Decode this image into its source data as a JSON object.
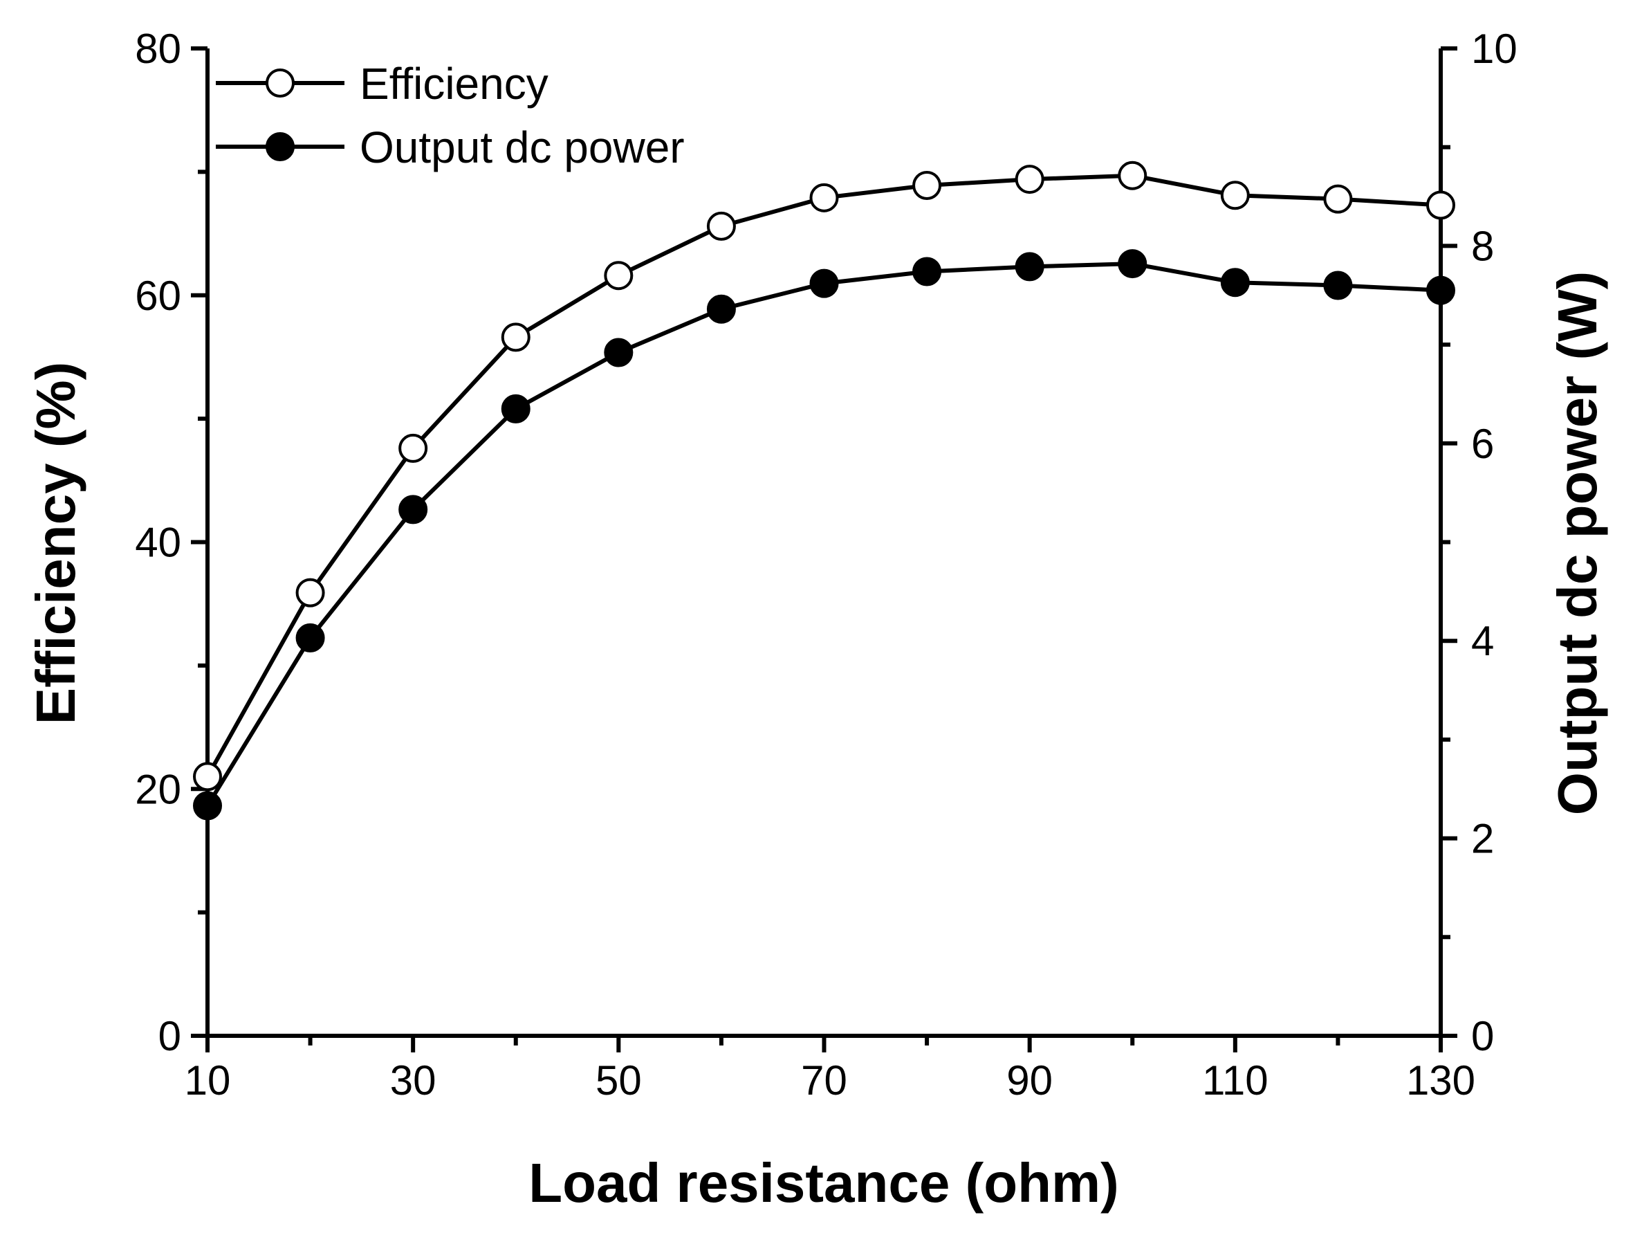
{
  "chart_data": {
    "type": "line",
    "x": [
      10,
      20,
      30,
      40,
      50,
      60,
      70,
      80,
      90,
      100,
      110,
      120,
      130
    ],
    "xlabel": "Load resistance (ohm)",
    "ylabel": "Efficiency (%)",
    "y2label": "Output dc power (W)",
    "xlim": [
      10,
      130
    ],
    "ylim": [
      0,
      80
    ],
    "y2lim": [
      0,
      10
    ],
    "xticks": [
      "10",
      "30",
      "50",
      "70",
      "90",
      "110",
      "130"
    ],
    "yticks": [
      "0",
      "20",
      "40",
      "60",
      "80"
    ],
    "y2ticks": [
      "0",
      "2",
      "4",
      "6",
      "8",
      "10"
    ],
    "legend_position": "top-left",
    "grid": false,
    "series": [
      {
        "name": "Efficiency",
        "axis": "left",
        "marker": "open-circle",
        "values": [
          21.0,
          35.9,
          47.6,
          56.6,
          61.6,
          65.6,
          67.9,
          68.9,
          69.4,
          69.7,
          68.1,
          67.8,
          67.3
        ]
      },
      {
        "name": "Output dc power",
        "axis": "right",
        "marker": "filled-circle",
        "values": [
          2.33,
          4.03,
          5.33,
          6.35,
          6.92,
          7.36,
          7.62,
          7.74,
          7.79,
          7.82,
          7.63,
          7.6,
          7.55
        ]
      }
    ],
    "colors": {
      "line": "#000000",
      "open_marker_fill": "#ffffff",
      "filled_marker_fill": "#000000"
    }
  }
}
